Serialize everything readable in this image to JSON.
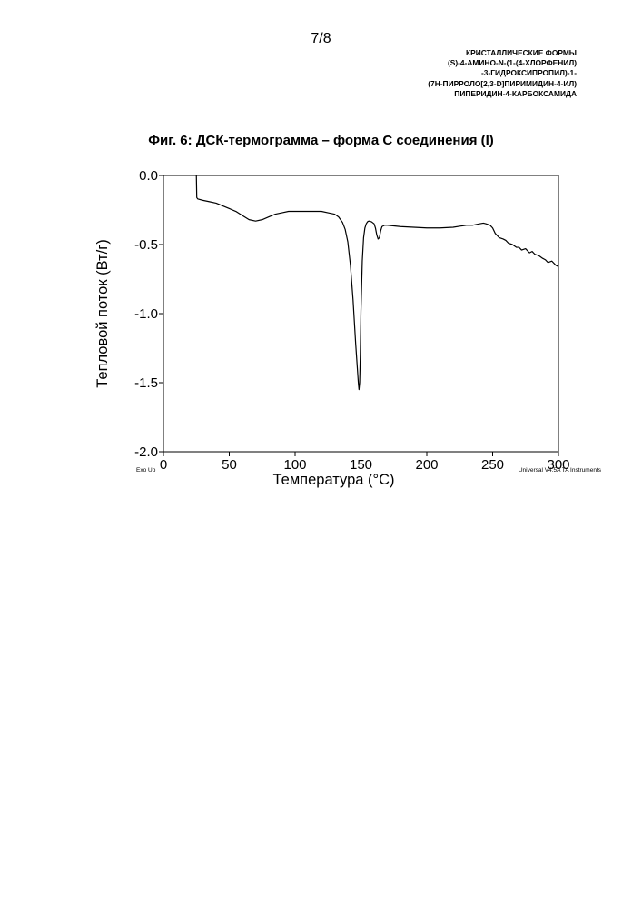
{
  "page": {
    "number": "7/8",
    "header_lines": [
      "КРИСТАЛЛИЧЕСКИЕ ФОРМЫ",
      "(S)-4-АМИНО-N-(1-(4-ХЛОРФЕНИЛ)",
      "-3-ГИДРОКСИПРОПИЛ)-1-",
      "(7H-ПИРРОЛО[2,3-D]ПИРИМИДИН-4-ИЛ)",
      "ПИПЕРИДИН-4-КАРБОКСАМИДА"
    ],
    "figure_title": "Фиг. 6: ДСК-термограмма – форма С соединения (I)"
  },
  "chart_data": {
    "type": "line",
    "title": "Фиг. 6: ДСК-термограмма – форма С соединения (I)",
    "xlabel": "Температура (°C)",
    "ylabel": "Тепловой поток (Вт/г)",
    "xlim": [
      0,
      300
    ],
    "ylim": [
      -2.0,
      0.0
    ],
    "x_ticks": [
      0,
      50,
      100,
      150,
      200,
      250,
      300
    ],
    "x_tick_labels": [
      "0",
      "50",
      "100",
      "150",
      "200",
      "250",
      "300"
    ],
    "y_ticks": [
      0.0,
      -0.5,
      -1.0,
      -1.5,
      -2.0
    ],
    "y_tick_labels": [
      "0.0",
      "-0.5",
      "-1.0",
      "-1.5",
      "-2.0"
    ],
    "grid": false,
    "annotations": {
      "exo": "Exo Up",
      "software": "Universal V4.5A TA Instruments"
    },
    "series": [
      {
        "x": [
          25,
          25.3,
          26,
          30,
          35,
          40,
          45,
          50,
          55,
          60,
          65,
          70,
          75,
          80,
          85,
          90,
          95,
          100,
          105,
          110,
          115,
          120,
          125,
          130,
          133,
          136,
          138,
          140,
          142,
          144,
          145,
          146,
          147,
          148,
          148.5,
          149,
          149.5,
          150,
          151,
          152,
          153,
          154,
          155,
          156,
          158,
          160,
          161,
          162,
          163,
          164,
          165,
          166,
          167,
          168,
          170,
          175,
          180,
          190,
          200,
          210,
          220,
          230,
          235,
          240,
          243,
          245,
          248,
          250,
          252,
          255,
          258,
          260,
          262,
          265,
          268,
          270,
          272,
          275,
          278,
          280,
          282,
          285,
          288,
          290,
          292,
          295,
          298,
          300
        ],
        "y": [
          0.0,
          -0.16,
          -0.17,
          -0.18,
          -0.19,
          -0.2,
          -0.22,
          -0.24,
          -0.26,
          -0.29,
          -0.32,
          -0.33,
          -0.32,
          -0.3,
          -0.28,
          -0.27,
          -0.26,
          -0.26,
          -0.26,
          -0.26,
          -0.26,
          -0.26,
          -0.27,
          -0.28,
          -0.3,
          -0.34,
          -0.39,
          -0.48,
          -0.65,
          -0.9,
          -1.06,
          -1.22,
          -1.36,
          -1.5,
          -1.55,
          -1.5,
          -1.3,
          -0.98,
          -0.62,
          -0.45,
          -0.38,
          -0.35,
          -0.335,
          -0.33,
          -0.335,
          -0.35,
          -0.38,
          -0.43,
          -0.46,
          -0.45,
          -0.4,
          -0.37,
          -0.365,
          -0.36,
          -0.36,
          -0.365,
          -0.37,
          -0.375,
          -0.38,
          -0.38,
          -0.375,
          -0.36,
          -0.36,
          -0.35,
          -0.345,
          -0.35,
          -0.36,
          -0.38,
          -0.42,
          -0.45,
          -0.46,
          -0.47,
          -0.49,
          -0.5,
          -0.52,
          -0.52,
          -0.54,
          -0.53,
          -0.56,
          -0.55,
          -0.57,
          -0.58,
          -0.6,
          -0.61,
          -0.63,
          -0.62,
          -0.65,
          -0.66
        ]
      }
    ]
  }
}
